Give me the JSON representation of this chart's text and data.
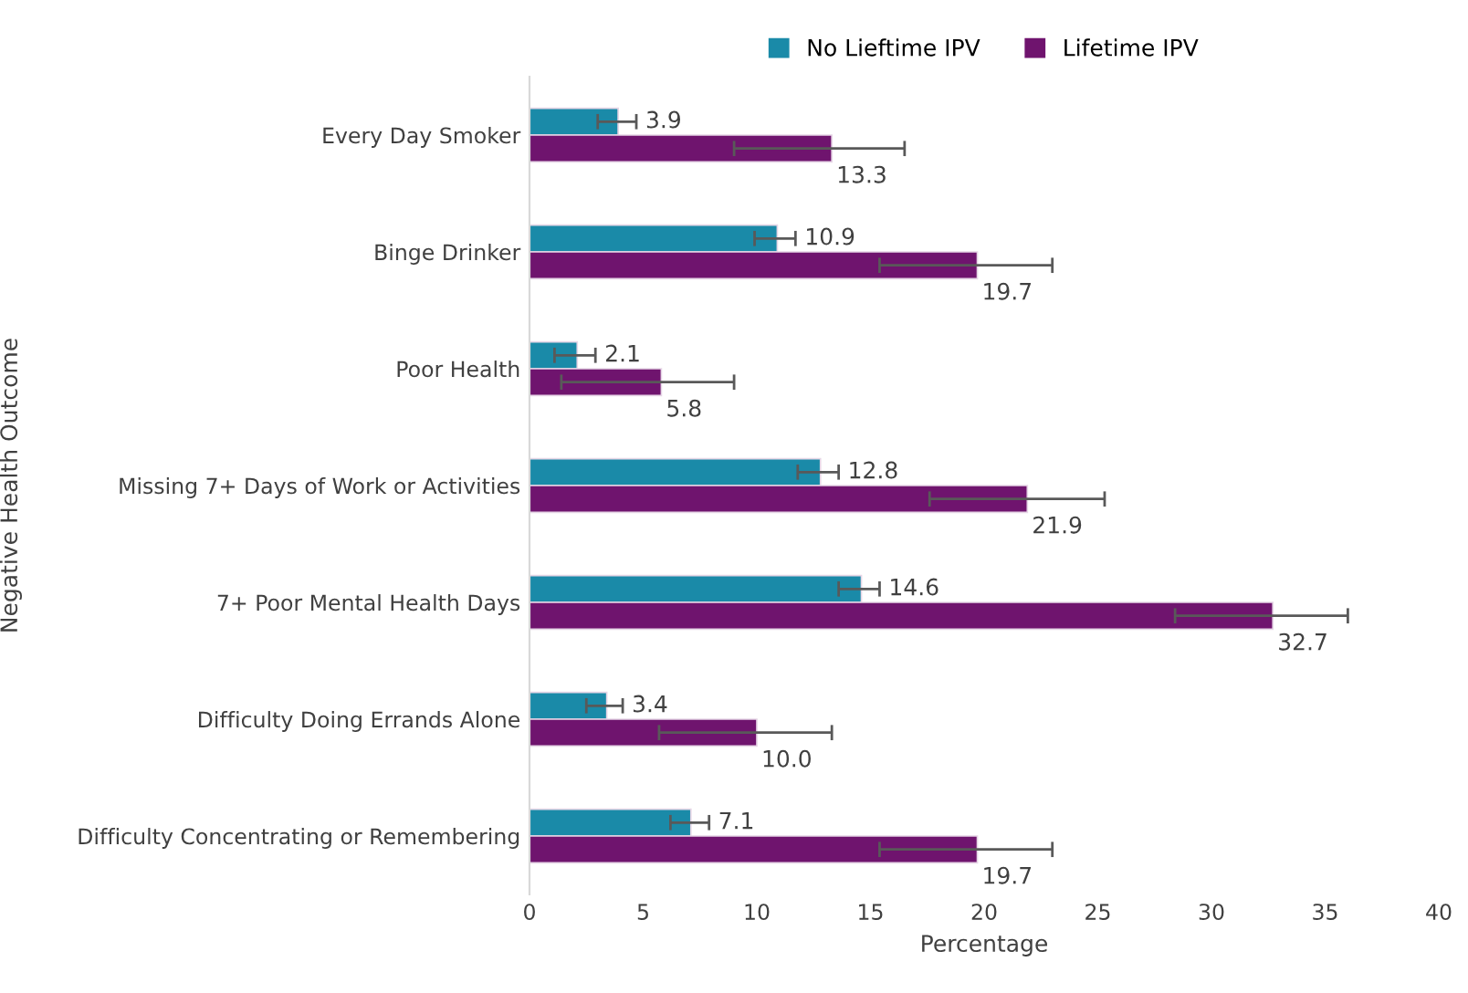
{
  "chart_data": {
    "type": "bar",
    "orientation": "horizontal",
    "xlabel": "Percentage",
    "ylabel": "Negative Health Outcome",
    "categories": [
      "Every Day Smoker",
      "Binge Drinker",
      "Poor Health",
      "Missing 7+ Days of Work or Activities",
      "7+ Poor Mental Health Days",
      "Difficulty Doing Errands Alone",
      "Difficulty Concentrating or Remembering"
    ],
    "series": [
      {
        "name": "No Lieftime IPV",
        "color": "#1a8aa8",
        "values": [
          3.9,
          10.9,
          2.1,
          12.8,
          14.6,
          3.4,
          7.1
        ],
        "value_labels": [
          "3.9",
          "10.9",
          "2.1",
          "12.8",
          "14.6",
          "3.4",
          "7.1"
        ],
        "errors": [
          [
            3.0,
            4.7
          ],
          [
            9.9,
            11.7
          ],
          [
            1.1,
            2.9
          ],
          [
            11.8,
            13.6
          ],
          [
            13.6,
            15.4
          ],
          [
            2.5,
            4.1
          ],
          [
            6.2,
            7.9
          ]
        ]
      },
      {
        "name": "Lifetime IPV",
        "color": "#6f146e",
        "values": [
          13.3,
          19.7,
          5.8,
          21.9,
          32.7,
          10.0,
          19.7
        ],
        "value_labels": [
          "13.3",
          "19.7",
          "5.8",
          "21.9",
          "32.7",
          "10.0",
          "19.7"
        ],
        "errors": [
          [
            9.0,
            16.5
          ],
          [
            15.4,
            23.0
          ],
          [
            1.4,
            9.0
          ],
          [
            17.6,
            25.3
          ],
          [
            28.4,
            36.0
          ],
          [
            5.7,
            13.3
          ],
          [
            15.4,
            23.0
          ]
        ]
      }
    ],
    "xlim": [
      0,
      40
    ],
    "xticks": [
      0,
      5,
      10,
      15,
      20,
      25,
      30,
      35,
      40
    ],
    "grid": false,
    "legend": "top"
  }
}
